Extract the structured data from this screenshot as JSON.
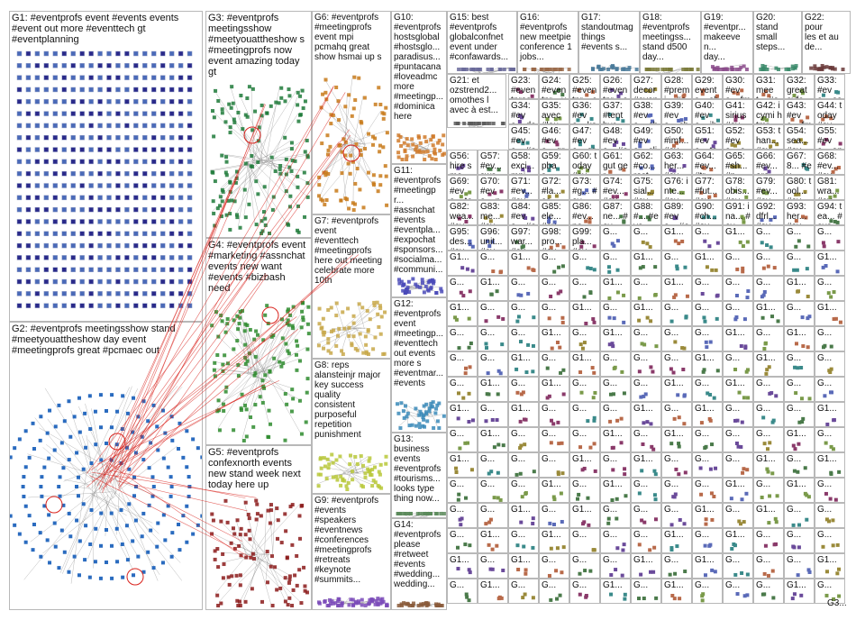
{
  "groups": [
    {
      "id": "G1",
      "label": "G1: #eventprofs event #events events\n#event out more #eventtech gt\n#eventplanning",
      "color": "#2a2a8a",
      "kind": "grid"
    },
    {
      "id": "G2",
      "label": "G2: #eventprofs meetingsshow stand\n#meetyouattheshow day event\n#meetingprofs great #pcmaec out",
      "color": "#2a6bbf",
      "kind": "ring"
    },
    {
      "id": "G3",
      "label": "G3: #eventprofs\nmeetingsshow\n#meetyouattheshow s\n#meetingprofs now\nevent amazing today\ngt",
      "color": "#1f7a3a",
      "kind": "cluster"
    },
    {
      "id": "G4",
      "label": "G4: #eventprofs event\n#marketing #assnchat\nevents new want\n#events #bizbash\nneed",
      "color": "#2e8b2e",
      "kind": "cluster"
    },
    {
      "id": "G5",
      "label": "G5: #eventprofs\nconfexnorth events\nnew stand week next\ntoday here up",
      "color": "#8b1a1a",
      "kind": "cluster"
    },
    {
      "id": "G6",
      "label": "G6: #eventprofs\n#meetingprofs\nevent mpi\npcmahq great\nshow hsmai up s",
      "color": "#c87a1a",
      "kind": "cluster"
    },
    {
      "id": "G7",
      "label": "G7: #eventprofs\nevent\n#eventtech\n#meetingprofs\nhere out meeting\ncelebrate more\n10th",
      "color": "#c8a84a",
      "kind": "cluster"
    },
    {
      "id": "G8",
      "label": "G8: reps\nalansteinjr major\nkey success\nquality\nconsistent\npurposeful\nrepetition\npunishment",
      "color": "#b8c83a",
      "kind": "cluster"
    },
    {
      "id": "G9",
      "label": "G9: #eventprofs\n#events\n#speakers\n#eventnews\n#conferences\n#meetingprofs\n#retreats\n#keynote\n#summits...",
      "color": "#7a4ab8",
      "kind": "cluster"
    },
    {
      "id": "G10",
      "label": "G10:\n#eventprofs\nhostsglobal\n#hostsglo...\nparadisus...\n#puntacana\n#loveadmc\nmore\n#meetingp...\n#dominica\nhere",
      "color": "#d07a2a",
      "kind": "cluster"
    },
    {
      "id": "G11",
      "label": "G11:\n#eventprofs\n#meetingpr...\n#assnchat\n#events\n#eventpla...\n#expochat\n#sponsors...\n#socialma...\n#communi...",
      "color": "#4a4ab8",
      "kind": "cluster"
    },
    {
      "id": "G12",
      "label": "G12:\n#eventprofs\nevent\n#meetingp...\n#eventtech\nout events\nmore s\n#eventmar...\n#events",
      "color": "#3a8ab8",
      "kind": "cluster"
    },
    {
      "id": "G13",
      "label": "G13:\nbusiness\nevents\n#eventprofs\n#tourisms...\nlooks type\nthing now...",
      "color": "#5a8a5a",
      "kind": "cluster"
    },
    {
      "id": "G14",
      "label": "G14:\n#eventprofs\nplease\n#retweet\n#events\n#wedding...\nwedding...",
      "color": "#8a5a3a",
      "kind": "cluster"
    },
    {
      "id": "G15",
      "label": "G15: best\n#eventprofs\nglobalconfnet\nevent under\n#confawards...",
      "color": "#6a6a9a",
      "kind": "cluster"
    },
    {
      "id": "G16",
      "label": "G16:\n#eventprofs\nnew meetpie\nconference 1\njobs...",
      "color": "#9a6a4a",
      "kind": "cluster"
    },
    {
      "id": "G17",
      "label": "G17:\nstandoutmag\nthings\n#events s...",
      "color": "#4a7a9a",
      "kind": "cluster"
    },
    {
      "id": "G18",
      "label": "G18:\n#eventprofs\nmeetingss...\nstand d500\nday...",
      "color": "#7a7a3a",
      "kind": "cluster"
    },
    {
      "id": "G19",
      "label": "G19:\n#eventpr...\nmakeeven...\nday...",
      "color": "#8a4a8a",
      "kind": "cluster"
    },
    {
      "id": "G20",
      "label": "G20:\nstand\nsmall\nsteps...",
      "color": "#3a8a6a",
      "kind": "cluster"
    },
    {
      "id": "G21",
      "label": "G21: et\nozstrend2...\nomothes l\navec à est...",
      "color": "#5a5a5a",
      "kind": "cluster"
    },
    {
      "id": "G22",
      "label": "G22:\npour\nles et au\nde...",
      "color": "#6a3a3a",
      "kind": "cluster"
    }
  ],
  "mini_labels": [
    "G23: #eventpros #wec19 #toronto...",
    "G24: #eventpr... vat #venuepr...",
    "G25: #eventpr... chandco ready...",
    "G26: #eventpr... acts #events...",
    "G27: decor #eventpr... dashindo...",
    "G28: #premi... #event... #somos...",
    "G29: events... shortlis... awards...",
    "G30: #eve... fmav... even...",
    "G31: meet... #eve... partn...",
    "G32: great avfc... #eve...",
    "G33: #eve... essa asso...",
    "G34: #eve... day visitb...",
    "G35: avec #lau...",
    "G36: #eve... katri...",
    "G37: #tent byco...",
    "G38: #eve... chris...",
    "G39: #eve... chec...",
    "G40: #eve... iberi...",
    "G41: sirius #eve...",
    "G42: icymi htmr...",
    "G43: #eve... fmav...",
    "G44: today #eve... celeb...",
    "G45: #eve... #eve...",
    "G46: #eve... gravi...",
    "G47: #eve... ora...",
    "G48: #eve... #ev...",
    "G49: #eve... clien...",
    "G50: #imf... #eve...",
    "G51: #eve... taco...",
    "G52: #eve... cmc...",
    "G53: than... #eve...",
    "G54: sea... #eve...",
    "G55: #eve... enh...",
    "G56: hire sma...",
    "G57: #ev... swa...",
    "G58: exci... mpi...",
    "G59: pba s...",
    "G60: today #ev...",
    "G61: gut ger...",
    "G62: #co... rest...",
    "G63: her... #eve...",
    "G64: #ev... #tr...",
    "G65: #sh... #p...",
    "G66: #ev... ora...",
    "G67: 8... #ev...",
    "G68: #ev... #ev...",
    "G69: #eve... tea...",
    "G70: #eve... ne...",
    "G71: #ev... #eve...",
    "G72: #la... ce...",
    "G73: #g... #ev...",
    "G74: #ev... #ev...",
    "G75: sial... #eve...",
    "G76: inte... #eve...",
    "G77: #fut... #ev...",
    "G78: obis... #ev...",
    "G79: #ev... #ev...",
    "G80: tool... #eve...",
    "G81: wra... #eve...",
    "G82: wea... #eve...",
    "G83: me... #ev...",
    "G84: #eve... #ev...",
    "G85: ele... #ev...",
    "G86: #ev... ne...",
    "G87: ne... #ev...",
    "G88: #... #eve...",
    "G89: #eve... #ev...",
    "G90: #ch... #eve...",
    "G91: ina... #ev...",
    "G92: dfrl... #ev...",
    "G93: her... #eve...",
    "G94: tea... #eve...",
    "G95: des... #ev...",
    "G96: unit... #ev...",
    "G97: war... #ev...",
    "G98: pro... #ev...",
    "G99: pla... #ev..."
  ],
  "small_cell_labels": [
    "G...",
    "G1...",
    "G...",
    "G1...",
    "G...",
    "G..."
  ],
  "corner_label": "G3...",
  "edge_color": "#d9231d",
  "link_color": "#8a8a8a"
}
